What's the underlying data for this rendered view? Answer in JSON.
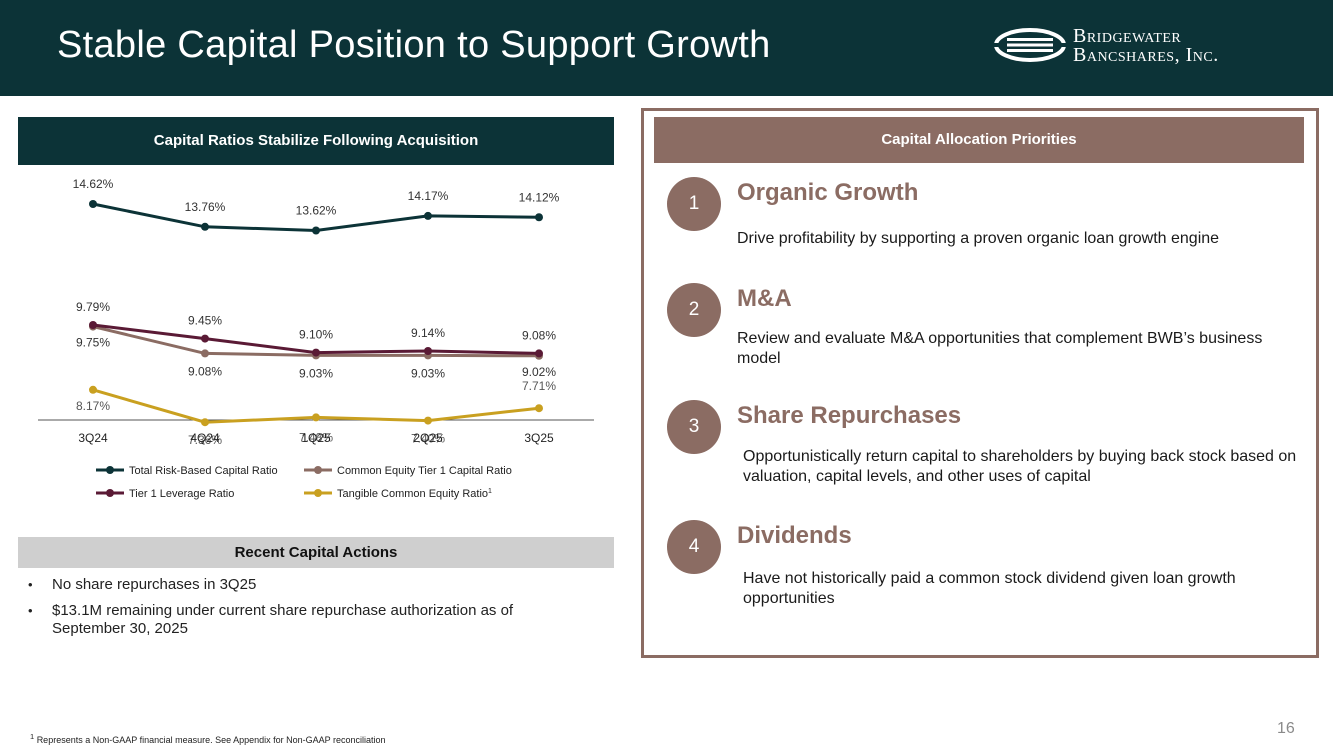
{
  "header": {
    "title": "Stable Capital Position to Support Growth"
  },
  "logo": {
    "line1": "Bridgewater",
    "line2": "Bancshares, Inc."
  },
  "chart_panel": {
    "title": "Capital Ratios Stabilize Following Acquisition"
  },
  "chart_data": {
    "type": "line",
    "title": "Capital Ratios Stabilize Following Acquisition",
    "categories": [
      "3Q24",
      "4Q24",
      "1Q25",
      "2Q25",
      "3Q25"
    ],
    "series": [
      {
        "name": "Total Risk-Based Capital Ratio",
        "color": "#0c3337",
        "values": [
          14.62,
          13.76,
          13.62,
          14.17,
          14.12
        ],
        "labels": [
          "14.62%",
          "13.76%",
          "13.62%",
          "14.17%",
          "14.12%"
        ]
      },
      {
        "name": "Common Equity Tier 1 Capital Ratio",
        "color": "#8b6c63",
        "values": [
          9.75,
          9.08,
          9.03,
          9.03,
          9.02
        ],
        "labels": [
          "9.75%",
          "9.08%",
          "9.03%",
          "9.03%",
          "9.02%"
        ]
      },
      {
        "name": "Tier 1 Leverage Ratio",
        "color": "#5a1a35",
        "values": [
          9.79,
          9.45,
          9.1,
          9.14,
          9.08
        ],
        "labels": [
          "9.79%",
          "9.45%",
          "9.10%",
          "9.14%",
          "9.08%"
        ]
      },
      {
        "name": "Tangible Common Equity Ratio",
        "sup": "1",
        "color": "#c9a020",
        "values": [
          8.17,
          7.36,
          7.48,
          7.4,
          7.71
        ],
        "labels": [
          "8.17%",
          "7.36%",
          "7.48%",
          "7.40%",
          "7.71%"
        ]
      }
    ],
    "xlabel": "",
    "ylabel": "",
    "grid": false,
    "legend": "bottom"
  },
  "actions": {
    "title": "Recent Capital Actions",
    "items": [
      "No share repurchases in 3Q25",
      "$13.1M remaining under current share repurchase authorization as of September 30, 2025"
    ]
  },
  "priorities": {
    "title": "Capital Allocation Priorities",
    "items": [
      {
        "num": "1",
        "title": "Organic Growth",
        "desc": "Drive profitability by supporting a proven organic loan growth engine"
      },
      {
        "num": "2",
        "title": "M&A",
        "desc": "Review and evaluate M&A opportunities that complement BWB’s business model"
      },
      {
        "num": "3",
        "title": "Share Repurchases",
        "desc": "Opportunistically return capital to shareholders by buying back stock based on valuation, capital levels, and other uses of capital"
      },
      {
        "num": "4",
        "title": "Dividends",
        "desc": "Have not historically paid a common stock dividend given loan growth opportunities"
      }
    ]
  },
  "footnote": {
    "sup": "1",
    "text": "Represents a Non-GAAP financial measure. See Appendix for Non-GAAP reconciliation"
  },
  "page_number": "16"
}
